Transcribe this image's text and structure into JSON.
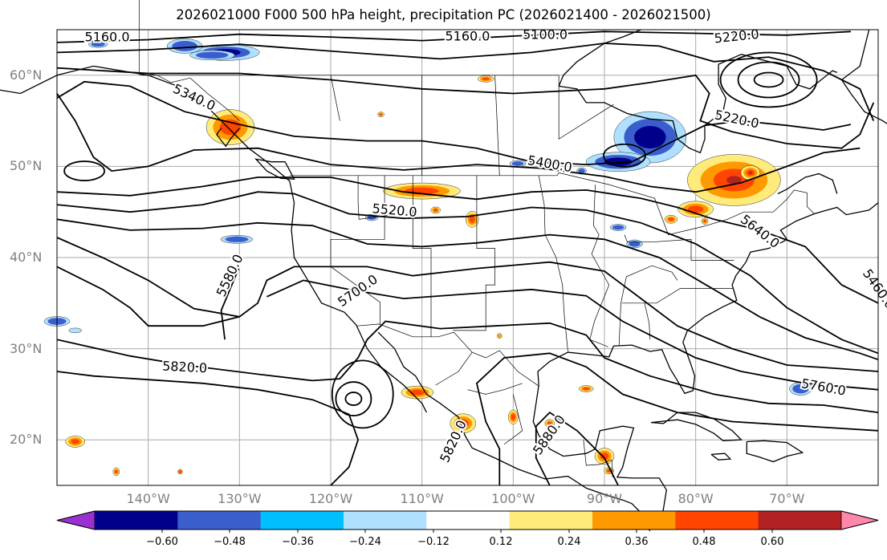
{
  "chart_data": {
    "type": "contour-map",
    "title": "2026021000 F000 500 hPa height, precipitation PC (2026021400 - 2026021500)",
    "projection": "PlateCarree",
    "lon_range": [
      -150,
      -60
    ],
    "lat_range": [
      15,
      65
    ],
    "lat_ticks": [
      "20°N",
      "30°N",
      "40°N",
      "50°N",
      "60°N"
    ],
    "lon_ticks": [
      "140°W",
      "130°W",
      "120°W",
      "110°W",
      "100°W",
      "90°W",
      "80°W",
      "70°W"
    ],
    "height_contours_hpa500_m": [
      "5100.0",
      "5160.0",
      "5220.0",
      "5340.0",
      "5400.0",
      "5460.0",
      "5520.0",
      "5580.0",
      "5640.0",
      "5700.0",
      "5760.0",
      "5820.0",
      "5880.0"
    ],
    "contour_label_texts": [
      "5160.0",
      "5160.0",
      "5100.0",
      "5220.0",
      "5220.0",
      "5340.0",
      "5400.0",
      "5520.0",
      "5580.0",
      "5700.0",
      "5640.0",
      "5460.0",
      "5820.0",
      "5760.0",
      "5820.0",
      "5880.0"
    ],
    "colorbar": {
      "boundaries": [
        -0.6,
        -0.48,
        -0.36,
        -0.24,
        -0.12,
        0.12,
        0.24,
        0.36,
        0.48,
        0.6
      ],
      "tick_labels": [
        "−0.60",
        "−0.48",
        "−0.36",
        "−0.24",
        "−0.12",
        "0.12",
        "0.24",
        "0.36",
        "0.48",
        "0.60"
      ],
      "colors": [
        "#9b30d0",
        "#00008b",
        "#3a5fcd",
        "#00bfff",
        "#b0e0ff",
        "#ffffff",
        "#ffeb7a",
        "#ff9900",
        "#ff4500",
        "#b22222",
        "#ff88aa"
      ],
      "extend": "both"
    }
  }
}
